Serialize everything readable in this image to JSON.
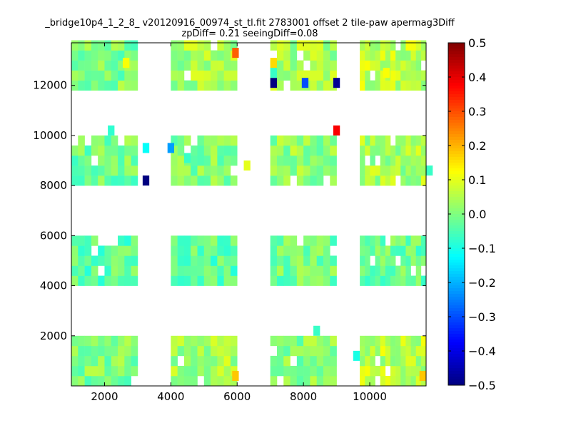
{
  "chart_data": {
    "type": "heatmap",
    "title_line1": "_bridge10p4_1_2_8_ v20120916_00974_st_tl.fit 2783001 offset 2 tile-paw apermag3Diff",
    "title_line2": "zpDiff= 0.21 seeingDiff=0.08",
    "xlabel": "",
    "ylabel": "",
    "xlim": [
      1000,
      11700
    ],
    "ylim": [
      0,
      13700
    ],
    "x_ticks": [
      2000,
      4000,
      6000,
      8000,
      10000
    ],
    "y_ticks": [
      2000,
      4000,
      6000,
      8000,
      10000,
      12000
    ],
    "cell_size": [
      350,
      400
    ],
    "x_origin": 1000,
    "y_origin": 0,
    "colorbar": {
      "range": [
        -0.5,
        0.5
      ],
      "ticks": [
        0.5,
        0.4,
        0.3,
        0.2,
        0.1,
        0.0,
        -0.1,
        -0.2,
        -0.3,
        -0.4,
        -0.5
      ],
      "tick_labels": [
        "0.5",
        "0.4",
        "0.3",
        "0.2",
        "0.1",
        "0.0",
        "−0.1",
        "−0.2",
        "−0.3",
        "−0.4",
        "−0.5"
      ],
      "colormap": "jet"
    },
    "blocks": [
      {
        "c0": 0,
        "c1": 4,
        "r0": 0,
        "r1": 5,
        "base": 0.03
      },
      {
        "c0": 3,
        "c1": 4,
        "r0": 27,
        "r1": 29,
        "base": 0.03
      },
      {
        "c0": 3,
        "c1": 6,
        "r0": 15,
        "r1": 19,
        "base": -0.03
      },
      {
        "c0": 3,
        "c1": 7,
        "r0": 17,
        "r1": 19,
        "base": -0.03
      },
      {
        "c0": 3,
        "c1": 7,
        "r0": 0,
        "r1": 5,
        "base": -0.03
      },
      {
        "c0": 3,
        "c1": 7,
        "r0": 10,
        "r1": 15,
        "base": -0.02
      },
      {
        "c0": 3,
        "c1": 7,
        "r0": 21,
        "r1": 26,
        "base": 0.02
      },
      {
        "c0": 3,
        "c1": 6,
        "r0": 29,
        "r1": 34,
        "base": 0.02
      },
      {
        "c0": 3,
        "c1": 6,
        "r0": 1,
        "r1": 2,
        "base": 0.02
      },
      {
        "c0": 3,
        "c1": 7,
        "r0": 15,
        "r1": 17,
        "base": 0.05
      },
      {
        "c0": 3,
        "c1": 7,
        "r0": 12,
        "r1": 14,
        "base": 0.05
      },
      {
        "c0": 3,
        "c1": 4,
        "r0": 23,
        "r1": 26,
        "base": 0.04
      },
      {
        "c0": 4,
        "c1": 7,
        "r0": 14,
        "r1": 15,
        "base": 0.05
      },
      {
        "c0": 3,
        "c1": 7,
        "r0": 20,
        "r1": 21,
        "base": 0.05
      },
      {
        "c0": 3,
        "c1": 6,
        "r0": 30,
        "r1": 33,
        "base": 0.05
      },
      {
        "c0": 3,
        "c1": 7,
        "r0": 32,
        "r1": 34,
        "base": 0.05
      },
      {
        "c0": 3,
        "c1": 4,
        "r0": 32,
        "r1": 34,
        "base": 0.05
      },
      {
        "c0": 4,
        "c1": 7,
        "r0": 30,
        "r1": 34,
        "base": 0.05
      },
      {
        "c0": 3,
        "c1": 4,
        "r0": 29,
        "r1": 34,
        "base": 0.05
      },
      {
        "c0": 4,
        "c1": 7,
        "r0": 33,
        "r1": 34,
        "base": 0.05
      },
      {
        "c0": 3,
        "c1": 4,
        "r0": 31,
        "r1": 34,
        "base": 0.05
      },
      {
        "c0": 4,
        "c1": 7,
        "r0": 29,
        "r1": 34,
        "base": 0.05
      },
      {
        "c0": 4,
        "c1": 5,
        "r0": 32,
        "r1": 34,
        "base": 0.05
      }
    ],
    "holes": [],
    "cells": [
      {
        "x": 1175,
        "y": 200,
        "v": 0.05
      }
    ],
    "panels": [
      {
        "x0": 1000,
        "x1": 3000,
        "y0": 0,
        "y1": 2000,
        "base": 0.0
      },
      {
        "x0": 4000,
        "x1": 6000,
        "y0": 0,
        "y1": 2000,
        "base": 0.04
      },
      {
        "x0": 7000,
        "x1": 9000,
        "y0": 0,
        "y1": 2000,
        "base": 0.01
      },
      {
        "x0": 9000,
        "x1": 11700,
        "y0": 0,
        "y1": 2000,
        "base": 0.06
      },
      {
        "x0": 1000,
        "x1": 3000,
        "y0": 4000,
        "y1": 6000,
        "base": -0.03
      },
      {
        "x0": 4000,
        "x1": 6000,
        "y0": 4000,
        "y1": 6000,
        "base": -0.03
      },
      {
        "x0": 7000,
        "x1": 9000,
        "y0": 4000,
        "y1": 6000,
        "base": -0.01
      },
      {
        "x0": 9000,
        "x1": 11700,
        "y0": 4000,
        "y1": 6000,
        "base": -0.02
      },
      {
        "x0": 1000,
        "x1": 3000,
        "y0": 8000,
        "y1": 10000,
        "base": -0.01
      },
      {
        "x0": 4000,
        "x1": 6000,
        "y0": 8000,
        "y1": 10000,
        "base": 0.0
      },
      {
        "x0": 7000,
        "x1": 9000,
        "y0": 8000,
        "y1": 10000,
        "base": 0.02
      },
      {
        "x0": 9000,
        "x1": 11700,
        "y0": 8000,
        "y1": 10000,
        "base": 0.04
      },
      {
        "x0": 1000,
        "x1": 3000,
        "y0": 11800,
        "y1": 13700,
        "base": 0.0
      },
      {
        "x0": 4000,
        "x1": 6000,
        "y0": 11800,
        "y1": 13700,
        "base": 0.04
      },
      {
        "x0": 7000,
        "x1": 9000,
        "y0": 11800,
        "y1": 13700,
        "base": 0.04
      },
      {
        "x0": 9000,
        "x1": 11700,
        "y0": 11800,
        "y1": 13700,
        "base": 0.06
      }
    ],
    "special_cells": [
      {
        "x": 5850,
        "y": 13100,
        "v": 0.28
      },
      {
        "x": 7000,
        "y": 12700,
        "v": 0.16
      },
      {
        "x": 7000,
        "y": 11900,
        "v": -0.5
      },
      {
        "x": 7950,
        "y": 11900,
        "v": -0.3
      },
      {
        "x": 8900,
        "y": 11900,
        "v": -0.48
      },
      {
        "x": 8900,
        "y": 10000,
        "v": 0.38
      },
      {
        "x": 3150,
        "y": 9300,
        "v": -0.12
      },
      {
        "x": 3900,
        "y": 9300,
        "v": -0.22
      },
      {
        "x": 3150,
        "y": 8000,
        "v": -0.5
      },
      {
        "x": 9500,
        "y": 1000,
        "v": -0.1
      },
      {
        "x": 11500,
        "y": 200,
        "v": 0.18
      },
      {
        "x": 5850,
        "y": 200,
        "v": 0.18
      },
      {
        "x": 2100,
        "y": 10000,
        "v": -0.08
      },
      {
        "x": 8300,
        "y": 2000,
        "v": -0.07
      },
      {
        "x": 7000,
        "y": 12300,
        "v": -0.07
      },
      {
        "x": 4400,
        "y": 8900,
        "v": -0.07
      },
      {
        "x": 11700,
        "y": 8400,
        "v": -0.07
      },
      {
        "x": 6200,
        "y": 8600,
        "v": 0.1
      },
      {
        "x": 10400,
        "y": 12300,
        "v": 0.12
      },
      {
        "x": 2550,
        "y": 12700,
        "v": 0.12
      }
    ]
  }
}
